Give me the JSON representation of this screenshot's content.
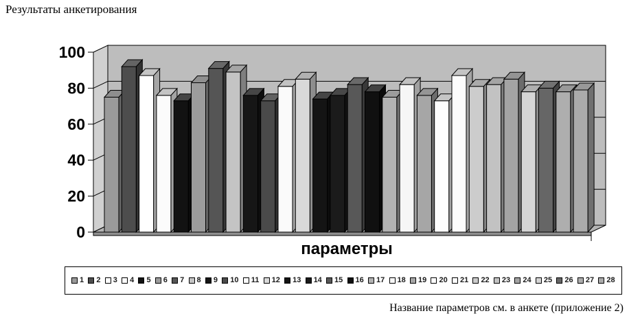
{
  "page": {
    "title": "Результаты анкетирования",
    "footnote": "Название параметров см. в анкете (приложение 2)"
  },
  "chart_data": {
    "type": "bar",
    "style": "3d-column-grayscale",
    "title": "Результаты анкетирования",
    "xlabel": "параметры",
    "ylabel": "",
    "ylim": [
      0,
      100
    ],
    "yticks": [
      0,
      20,
      40,
      60,
      80,
      100
    ],
    "grid": true,
    "legend_position": "bottom",
    "categories": [
      "1",
      "2",
      "3",
      "4",
      "5",
      "6",
      "7",
      "8",
      "9",
      "10",
      "11",
      "12",
      "13",
      "14",
      "15",
      "16",
      "17",
      "18",
      "19",
      "20",
      "21",
      "22",
      "23",
      "24",
      "25",
      "26",
      "27",
      "28"
    ],
    "values": [
      75,
      92,
      87,
      76,
      73,
      83,
      91,
      89,
      76,
      73,
      81,
      85,
      74,
      76,
      82,
      78,
      75,
      82,
      76,
      73,
      87,
      81,
      82,
      85,
      78,
      80,
      78,
      79
    ],
    "bar_colors": [
      "#9a9a9a",
      "#4d4d4d",
      "#ffffff",
      "#fbfbfb",
      "#121212",
      "#9c9c9c",
      "#555555",
      "#c4c4c4",
      "#161616",
      "#4a4a4a",
      "#fafafa",
      "#d9d9d9",
      "#141414",
      "#1b1b1b",
      "#585858",
      "#101010",
      "#b2b2b2",
      "#f6f6f6",
      "#a6a6a6",
      "#fdfdfd",
      "#fcfcfc",
      "#cccccc",
      "#c2c2c2",
      "#a4a4a4",
      "#d5d5d5",
      "#666666",
      "#aeaeae",
      "#ababab"
    ],
    "wall_color": "#bdbdbd",
    "side_wall_color": "#d0d0d0",
    "floor_color": "#b3b3b3",
    "floor_edge_color": "#8f8f8f",
    "axis_color": "#000000"
  }
}
